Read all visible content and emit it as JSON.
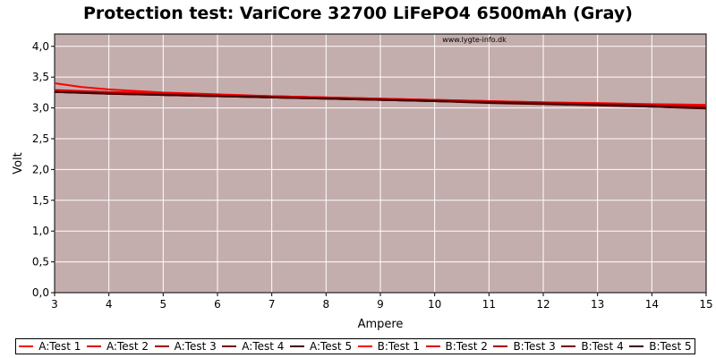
{
  "chart_data": {
    "type": "line",
    "title": "Protection test: VariCore 32700 LiFePO4 6500mAh (Gray)",
    "watermark": "www.lygte-info.dk",
    "xlabel": "Ampere",
    "ylabel": "Volt",
    "xlim": [
      3,
      15
    ],
    "ylim": [
      0,
      4.2
    ],
    "xticks": [
      "3",
      "4",
      "5",
      "6",
      "7",
      "8",
      "9",
      "10",
      "11",
      "12",
      "13",
      "14",
      "15"
    ],
    "yticks": [
      "0,0",
      "0,5",
      "1,0",
      "1,5",
      "2,0",
      "2,5",
      "3,0",
      "3,5",
      "4,0"
    ],
    "grid": true,
    "plot_background": "#c4adad",
    "legend_position": "bottom",
    "series": [
      {
        "name": "A:Test 1",
        "color": "#ff0000",
        "x": [
          3,
          3.5,
          4,
          5,
          6,
          7,
          8,
          9,
          10,
          11,
          12,
          13,
          14,
          15
        ],
        "y": [
          3.4,
          3.34,
          3.3,
          3.25,
          3.22,
          3.19,
          3.17,
          3.14,
          3.12,
          3.1,
          3.08,
          3.06,
          3.05,
          3.04
        ]
      },
      {
        "name": "A:Test 2",
        "color": "#dd0000",
        "x": [
          3,
          4,
          5,
          6,
          7,
          8,
          9,
          10,
          11,
          12,
          13,
          14,
          15
        ],
        "y": [
          3.29,
          3.26,
          3.24,
          3.21,
          3.19,
          3.17,
          3.15,
          3.13,
          3.11,
          3.09,
          3.07,
          3.05,
          3.02
        ]
      },
      {
        "name": "A:Test 3",
        "color": "#aa0000",
        "x": [
          3,
          4,
          5,
          6,
          7,
          8,
          9,
          10,
          11,
          12,
          13,
          14,
          15
        ],
        "y": [
          3.28,
          3.25,
          3.23,
          3.2,
          3.18,
          3.16,
          3.14,
          3.12,
          3.1,
          3.08,
          3.06,
          3.04,
          3.01
        ]
      },
      {
        "name": "A:Test 4",
        "color": "#770000",
        "x": [
          3,
          4,
          5,
          6,
          7,
          8,
          9,
          10,
          11,
          12,
          13,
          14,
          15
        ],
        "y": [
          3.27,
          3.24,
          3.22,
          3.2,
          3.18,
          3.16,
          3.14,
          3.11,
          3.09,
          3.07,
          3.05,
          3.03,
          3.0
        ]
      },
      {
        "name": "A:Test 5",
        "color": "#440000",
        "x": [
          3,
          4,
          5,
          6,
          7,
          8,
          9,
          10,
          11,
          12,
          13,
          14,
          15
        ],
        "y": [
          3.26,
          3.24,
          3.21,
          3.19,
          3.17,
          3.15,
          3.13,
          3.11,
          3.09,
          3.07,
          3.05,
          3.02,
          3.0
        ]
      },
      {
        "name": "B:Test 1",
        "color": "#ff0000",
        "x": [
          3,
          4,
          5,
          6,
          7,
          8,
          9,
          10,
          11,
          12,
          13,
          14,
          15
        ],
        "y": [
          3.27,
          3.25,
          3.23,
          3.21,
          3.19,
          3.17,
          3.15,
          3.13,
          3.11,
          3.09,
          3.08,
          3.06,
          3.05
        ]
      },
      {
        "name": "B:Test 2",
        "color": "#dd0000",
        "x": [
          3,
          4,
          5,
          6,
          7,
          8,
          9,
          10,
          11,
          12,
          13,
          14,
          15
        ],
        "y": [
          3.27,
          3.24,
          3.22,
          3.2,
          3.18,
          3.16,
          3.14,
          3.12,
          3.1,
          3.08,
          3.06,
          3.04,
          3.02
        ]
      },
      {
        "name": "B:Test 3",
        "color": "#aa0000",
        "x": [
          3,
          4,
          5,
          6,
          7,
          8,
          9,
          10,
          11,
          12,
          13,
          14,
          15
        ],
        "y": [
          3.26,
          3.24,
          3.22,
          3.2,
          3.18,
          3.16,
          3.14,
          3.12,
          3.1,
          3.08,
          3.06,
          3.04,
          3.01
        ]
      },
      {
        "name": "B:Test 4",
        "color": "#770000",
        "x": [
          3,
          4,
          5,
          6,
          7,
          8,
          9,
          10,
          11,
          12,
          13,
          14,
          15
        ],
        "y": [
          3.26,
          3.23,
          3.21,
          3.19,
          3.17,
          3.15,
          3.13,
          3.11,
          3.09,
          3.07,
          3.05,
          3.03,
          3.0
        ]
      },
      {
        "name": "B:Test 5",
        "color": "#440000",
        "x": [
          3,
          4,
          5,
          6,
          7,
          8,
          9,
          10,
          11,
          12,
          13,
          14,
          15
        ],
        "y": [
          3.26,
          3.23,
          3.21,
          3.19,
          3.17,
          3.15,
          3.13,
          3.11,
          3.08,
          3.06,
          3.04,
          3.02,
          2.99
        ]
      }
    ]
  }
}
